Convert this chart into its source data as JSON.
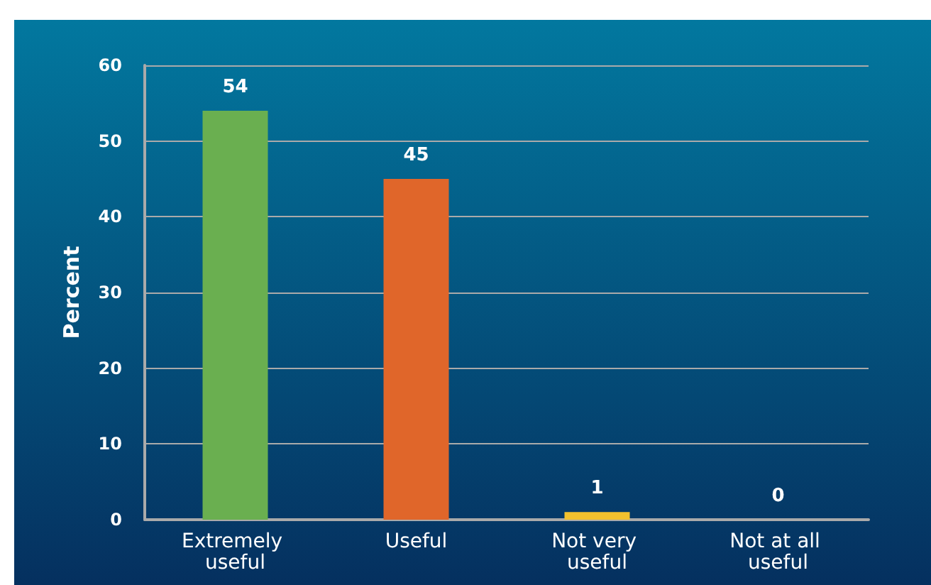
{
  "chart_data": {
    "type": "bar",
    "ylabel": "Percent",
    "categories": [
      "Extremely useful",
      "Useful",
      "Not very useful",
      "Not at all useful"
    ],
    "values": [
      54,
      45,
      1,
      0
    ],
    "colors": [
      "#6aaf50",
      "#e0662a",
      "#f2c12e",
      "#f2c12e"
    ],
    "ylim": [
      0,
      60
    ],
    "yticks": [
      0,
      10,
      20,
      30,
      40,
      50,
      60
    ],
    "grid": "y",
    "data_labels": true
  }
}
